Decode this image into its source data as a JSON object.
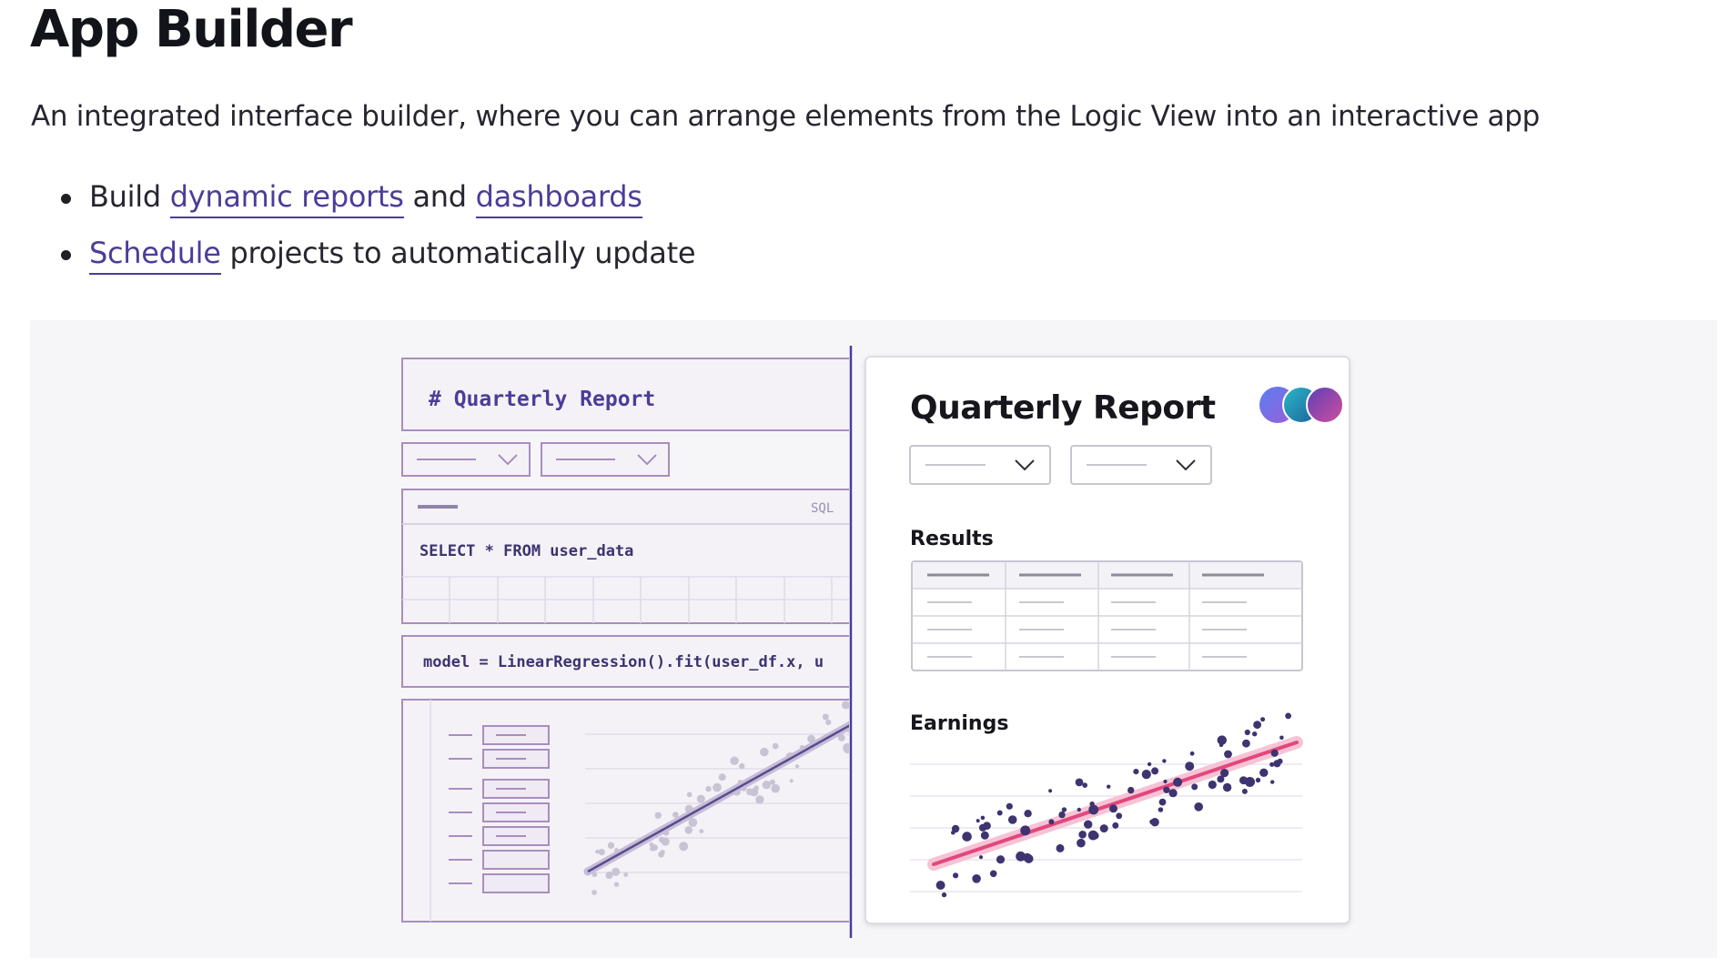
{
  "page": {
    "title": "App Builder",
    "description": "An integrated interface builder, where you can arrange elements from the Logic View into an interactive app",
    "bullets": [
      {
        "prefix": "Build ",
        "link1": "dynamic reports",
        "middle": " and ",
        "link2": "dashboards"
      },
      {
        "link": "Schedule",
        "suffix": " projects to automatically update"
      }
    ]
  },
  "illustration": {
    "logic_view": {
      "markdown_cell": "# Quarterly Report",
      "sql_badge": "SQL",
      "sql_query": "SELECT * FROM user_data",
      "python_code": "model = LinearRegression().fit(user_df.x, u"
    },
    "app_view": {
      "title": "Quarterly Report",
      "results_label": "Results",
      "earnings_label": "Earnings"
    }
  },
  "colors": {
    "accent": "#4b3d98",
    "logic_border": "#a98dbf",
    "regression_line": "#e2477d",
    "app_points": "#3e3470",
    "logic_points": "#c9c3d4"
  }
}
